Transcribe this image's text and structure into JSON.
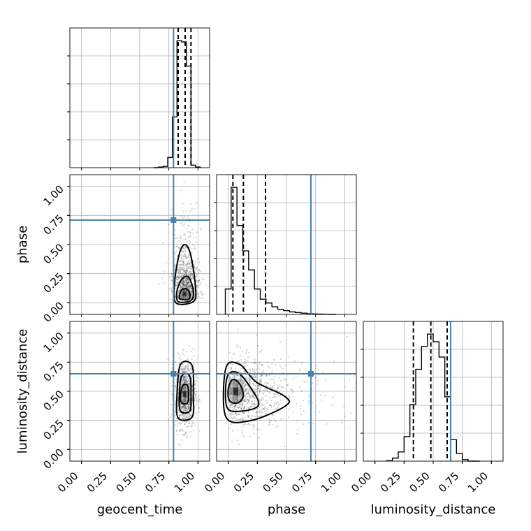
{
  "chart_data": {
    "type": "corner",
    "parameters": [
      "geocent_time",
      "phase",
      "luminosity_distance"
    ],
    "truths": {
      "geocent_time": 0.79,
      "phase": 0.71,
      "luminosity_distance": 0.65
    },
    "axis_range": [
      -0.1,
      1.1
    ],
    "tick_labels": [
      "0.00",
      "0.25",
      "0.50",
      "0.75",
      "1.00"
    ],
    "tick_values": [
      0,
      0.25,
      0.5,
      0.75,
      1.0
    ],
    "grid": true,
    "histograms": {
      "geocent_time": {
        "bin_edges": [
          0.62,
          0.66,
          0.7,
          0.74,
          0.78,
          0.82,
          0.86,
          0.9,
          0.94,
          0.98,
          1.02
        ],
        "counts": [
          0,
          1,
          2,
          16,
          80,
          200,
          198,
          160,
          4,
          1
        ],
        "quantiles": [
          0.83,
          0.89,
          0.94
        ]
      },
      "phase": {
        "bin_edges": [
          -0.025,
          0.025,
          0.075,
          0.125,
          0.175,
          0.225,
          0.275,
          0.325,
          0.375,
          0.425,
          0.475,
          0.525,
          0.575,
          0.625,
          0.675,
          0.725,
          0.775,
          0.825,
          0.875,
          0.925
        ],
        "counts": [
          20,
          100,
          70,
          50,
          35,
          20,
          12,
          9,
          6,
          4,
          3,
          2,
          1.5,
          1,
          0.5,
          0.3,
          0.2,
          0.1,
          0
        ],
        "quantiles": [
          0.04,
          0.13,
          0.32
        ]
      },
      "luminosity_distance": {
        "bin_edges": [
          0.1,
          0.15,
          0.2,
          0.25,
          0.3,
          0.35,
          0.4,
          0.45,
          0.5,
          0.55,
          0.6,
          0.65,
          0.7,
          0.75,
          0.8,
          0.85,
          0.9
        ],
        "counts": [
          0.3,
          2,
          6,
          16,
          37,
          60,
          75,
          83,
          78,
          68,
          42,
          14,
          5,
          1,
          0,
          0
        ],
        "quantiles": [
          0.33,
          0.48,
          0.62
        ]
      }
    },
    "joint": [
      {
        "x": "geocent_time",
        "y": "phase",
        "center": [
          0.89,
          0.07
        ],
        "contours": [
          [
            [
              0.85,
              0.03
            ],
            [
              0.92,
              0.03
            ],
            [
              0.93,
              0.08
            ],
            [
              0.9,
              0.12
            ],
            [
              0.86,
              0.11
            ],
            [
              0.84,
              0.06
            ]
          ],
          [
            [
              0.83,
              0.01
            ],
            [
              0.94,
              0.02
            ],
            [
              0.96,
              0.1
            ],
            [
              0.92,
              0.22
            ],
            [
              0.86,
              0.2
            ],
            [
              0.82,
              0.1
            ]
          ],
          [
            [
              0.81,
              0.0
            ],
            [
              0.96,
              0.01
            ],
            [
              0.98,
              0.12
            ],
            [
              0.94,
              0.4
            ],
            [
              0.89,
              0.5
            ],
            [
              0.84,
              0.42
            ],
            [
              0.8,
              0.18
            ]
          ]
        ]
      },
      {
        "x": "geocent_time",
        "y": "luminosity_distance",
        "center": [
          0.89,
          0.47
        ],
        "contours": [
          [
            [
              0.86,
              0.4
            ],
            [
              0.91,
              0.4
            ],
            [
              0.92,
              0.47
            ],
            [
              0.91,
              0.55
            ],
            [
              0.87,
              0.55
            ],
            [
              0.85,
              0.47
            ]
          ],
          [
            [
              0.85,
              0.33
            ],
            [
              0.93,
              0.33
            ],
            [
              0.94,
              0.47
            ],
            [
              0.93,
              0.63
            ],
            [
              0.86,
              0.63
            ],
            [
              0.84,
              0.47
            ]
          ],
          [
            [
              0.83,
              0.27
            ],
            [
              0.95,
              0.28
            ],
            [
              0.96,
              0.47
            ],
            [
              0.95,
              0.72
            ],
            [
              0.85,
              0.73
            ],
            [
              0.82,
              0.47
            ]
          ]
        ]
      },
      {
        "x": "phase",
        "y": "luminosity_distance",
        "center": [
          0.06,
          0.49
        ],
        "contours": [
          [
            [
              0.01,
              0.42
            ],
            [
              0.08,
              0.4
            ],
            [
              0.13,
              0.46
            ],
            [
              0.1,
              0.56
            ],
            [
              0.04,
              0.6
            ],
            [
              0.0,
              0.52
            ]
          ],
          [
            [
              -0.01,
              0.36
            ],
            [
              0.12,
              0.33
            ],
            [
              0.26,
              0.38
            ],
            [
              0.2,
              0.52
            ],
            [
              0.08,
              0.66
            ],
            [
              -0.01,
              0.62
            ]
          ],
          [
            [
              -0.02,
              0.28
            ],
            [
              0.2,
              0.25
            ],
            [
              0.5,
              0.38
            ],
            [
              0.48,
              0.46
            ],
            [
              0.24,
              0.58
            ],
            [
              0.1,
              0.73
            ],
            [
              -0.02,
              0.7
            ]
          ]
        ]
      }
    ]
  }
}
